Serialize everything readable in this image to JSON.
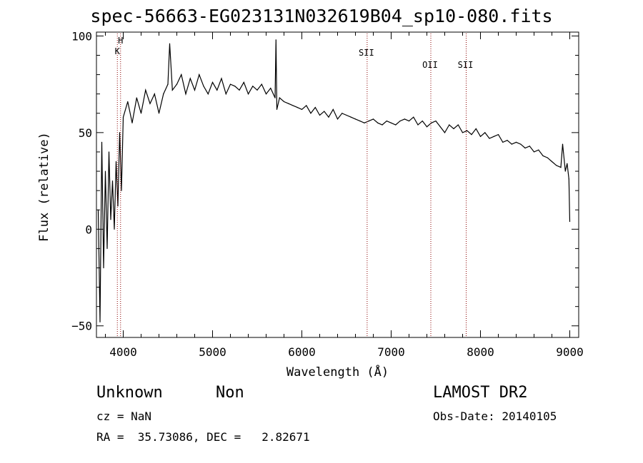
{
  "chart_data": {
    "type": "line",
    "title": "spec-56663-EG023131N032619B04_sp10-080.fits",
    "xlabel": "Wavelength (Å)",
    "ylabel": "Flux (relative)",
    "xlim": [
      3700,
      9100
    ],
    "ylim": [
      -56,
      102
    ],
    "xticks": [
      4000,
      5000,
      6000,
      7000,
      8000,
      9000
    ],
    "yticks": [
      -50,
      0,
      50,
      100
    ],
    "grid": false,
    "line_color": "#000000",
    "marker_color": "#8b0000",
    "series": [
      {
        "x": [
          3720,
          3740,
          3760,
          3780,
          3800,
          3820,
          3840,
          3860,
          3880,
          3900,
          3920,
          3940,
          3960,
          3980,
          4000,
          4050,
          4100,
          4150,
          4200,
          4250,
          4300,
          4350,
          4400,
          4450,
          4500,
          4520,
          4550,
          4600,
          4650,
          4700,
          4750,
          4800,
          4850,
          4900,
          4950,
          5000,
          5050,
          5100,
          5150,
          5200,
          5250,
          5300,
          5350,
          5400,
          5450,
          5500,
          5550,
          5600,
          5650,
          5700,
          5710,
          5720,
          5750,
          5800,
          5850,
          5900,
          5950,
          6000,
          6050,
          6100,
          6150,
          6200,
          6250,
          6300,
          6350,
          6400,
          6450,
          6500,
          6550,
          6600,
          6650,
          6700,
          6750,
          6800,
          6850,
          6900,
          6950,
          7000,
          7050,
          7100,
          7150,
          7200,
          7250,
          7300,
          7350,
          7400,
          7450,
          7500,
          7550,
          7600,
          7650,
          7700,
          7750,
          7800,
          7850,
          7900,
          7950,
          8000,
          8050,
          8100,
          8150,
          8200,
          8250,
          8300,
          8350,
          8400,
          8450,
          8500,
          8550,
          8600,
          8650,
          8700,
          8750,
          8800,
          8850,
          8900,
          8920,
          8950,
          8970,
          8990,
          9000
        ],
        "y": [
          10,
          -48,
          45,
          -20,
          30,
          -10,
          40,
          5,
          25,
          0,
          35,
          12,
          50,
          20,
          58,
          66,
          55,
          68,
          60,
          72,
          65,
          70,
          60,
          70,
          75,
          96,
          72,
          75,
          80,
          70,
          78,
          72,
          80,
          74,
          70,
          76,
          72,
          78,
          70,
          75,
          74,
          72,
          76,
          70,
          74,
          72,
          75,
          70,
          73,
          68,
          98,
          62,
          68,
          66,
          65,
          64,
          63,
          62,
          64,
          60,
          63,
          59,
          61,
          58,
          62,
          57,
          60,
          59,
          58,
          57,
          56,
          55,
          56,
          57,
          55,
          54,
          56,
          55,
          54,
          56,
          57,
          56,
          58,
          54,
          56,
          53,
          55,
          56,
          53,
          50,
          54,
          52,
          54,
          50,
          51,
          49,
          52,
          48,
          50,
          47,
          48,
          49,
          45,
          46,
          44,
          45,
          44,
          42,
          43,
          40,
          41,
          38,
          37,
          35,
          33,
          32,
          44,
          30,
          34,
          26,
          4
        ]
      }
    ],
    "lines": [
      {
        "label": "H",
        "x": 3970
      },
      {
        "label": "K",
        "x": 3934
      },
      {
        "label": "SII",
        "x": 6731
      },
      {
        "label": "OII",
        "x": 7444
      },
      {
        "label": "SII",
        "x": 7840
      }
    ]
  },
  "footer": {
    "object_class": "Unknown",
    "object_subclass": "Non",
    "survey": "LAMOST DR2",
    "cz": "cz = NaN",
    "obs_date": "Obs-Date: 20140105",
    "coords": "RA =  35.73086, DEC =   2.82671"
  }
}
